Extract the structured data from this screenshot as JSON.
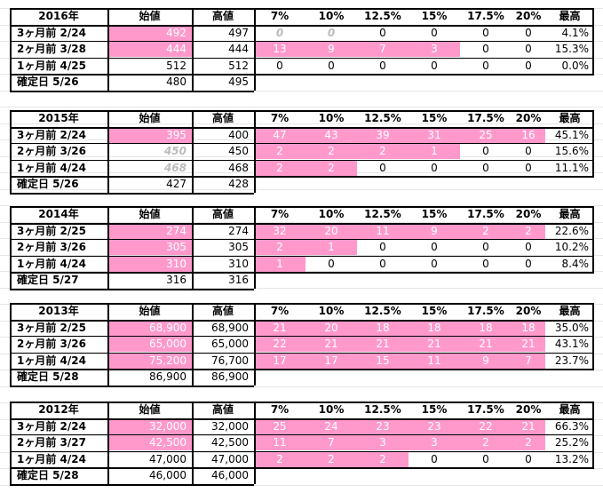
{
  "headers": [
    "始値",
    "高値",
    "7%",
    "10%",
    "12.5%",
    "15%",
    "17.5%",
    "20%",
    "最高"
  ],
  "blocks": [
    {
      "year": "2016年",
      "rows": [
        {
          "label": "3ヶ月前  2/24",
          "open": "492",
          "high": "497",
          "p7": "0",
          "p10": "0",
          "p125": "0",
          "p15": "0",
          "p175": "0",
          "p20": "0",
          "max": "4.1%"
        },
        {
          "label": "2ヶ月前  3/28",
          "open": "444",
          "high": "444",
          "p7": "13",
          "p10": "9",
          "p125": "7",
          "p15": "3",
          "p175": "0",
          "p20": "0",
          "max": "15.3%"
        },
        {
          "label": "1ヶ月前  4/25",
          "open": "512",
          "high": "512",
          "p7": "0",
          "p10": "0",
          "p125": "0",
          "p15": "0",
          "p175": "0",
          "p20": "0",
          "max": "0.0%"
        },
        {
          "label": "確定日  5/26",
          "open": "480",
          "high": "495"
        }
      ]
    },
    {
      "year": "2015年",
      "rows": [
        {
          "label": "3ヶ月前  2/24",
          "open": "395",
          "high": "400",
          "p7": "47",
          "p10": "43",
          "p125": "39",
          "p15": "31",
          "p175": "25",
          "p20": "16",
          "max": "45.1%"
        },
        {
          "label": "2ヶ月前  3/26",
          "open": "450",
          "high": "450",
          "p7": "2",
          "p10": "2",
          "p125": "2",
          "p15": "1",
          "p175": "0",
          "p20": "0",
          "max": "15.6%"
        },
        {
          "label": "1ヶ月前  4/24",
          "open": "468",
          "high": "468",
          "p7": "2",
          "p10": "2",
          "p125": "0",
          "p15": "0",
          "p175": "0",
          "p20": "0",
          "max": "11.1%"
        },
        {
          "label": "確定日  5/26",
          "open": "427",
          "high": "428"
        }
      ]
    },
    {
      "year": "2014年",
      "rows": [
        {
          "label": "3ヶ月前  2/25",
          "open": "274",
          "high": "274",
          "p7": "32",
          "p10": "20",
          "p125": "11",
          "p15": "9",
          "p175": "2",
          "p20": "2",
          "max": "22.6%"
        },
        {
          "label": "2ヶ月前  3/26",
          "open": "305",
          "high": "305",
          "p7": "2",
          "p10": "1",
          "p125": "0",
          "p15": "0",
          "p175": "0",
          "p20": "0",
          "max": "10.2%"
        },
        {
          "label": "1ヶ月前  4/24",
          "open": "310",
          "high": "310",
          "p7": "1",
          "p10": "0",
          "p125": "0",
          "p15": "0",
          "p175": "0",
          "p20": "0",
          "max": "8.4%"
        },
        {
          "label": "確定日  5/27",
          "open": "316",
          "high": "316"
        }
      ]
    },
    {
      "year": "2013年",
      "rows": [
        {
          "label": "3ヶ月前  2/25",
          "open": "68,900",
          "high": "68,900",
          "p7": "21",
          "p10": "20",
          "p125": "18",
          "p15": "18",
          "p175": "18",
          "p20": "18",
          "max": "35.0%"
        },
        {
          "label": "2ヶ月前  3/26",
          "open": "65,000",
          "high": "65,000",
          "p7": "22",
          "p10": "21",
          "p125": "21",
          "p15": "21",
          "p175": "21",
          "p20": "21",
          "max": "43.1%"
        },
        {
          "label": "1ヶ月前  4/24",
          "open": "75,200",
          "high": "76,700",
          "p7": "17",
          "p10": "17",
          "p125": "15",
          "p15": "11",
          "p175": "9",
          "p20": "7",
          "max": "23.7%"
        },
        {
          "label": "確定日  5/28",
          "open": "86,900",
          "high": "86,900"
        }
      ]
    },
    {
      "year": "2012年",
      "rows": [
        {
          "label": "3ヶ月前  2/24",
          "open": "32,000",
          "high": "32,000",
          "p7": "25",
          "p10": "24",
          "p125": "23",
          "p15": "23",
          "p175": "22",
          "p20": "21",
          "max": "66.3%"
        },
        {
          "label": "2ヶ月前  3/27",
          "open": "42,500",
          "high": "42,500",
          "p7": "11",
          "p10": "7",
          "p125": "3",
          "p15": "3",
          "p175": "2",
          "p20": "2",
          "max": "25.2%"
        },
        {
          "label": "1ヶ月前  4/24",
          "open": "47,000",
          "high": "47,000",
          "p7": "2",
          "p10": "2",
          "p125": "2",
          "p15": "0",
          "p175": "0",
          "p20": "0",
          "max": "13.2%"
        },
        {
          "label": "確定日  5/28",
          "open": "46,000",
          "high": "46,000"
        }
      ]
    }
  ],
  "colors": {
    "highlight": "#ff99cc",
    "highlight_text": "#ffffff",
    "dim_text": "#bbbbbb",
    "grid": "#e6e6e6",
    "border": "#000000"
  }
}
